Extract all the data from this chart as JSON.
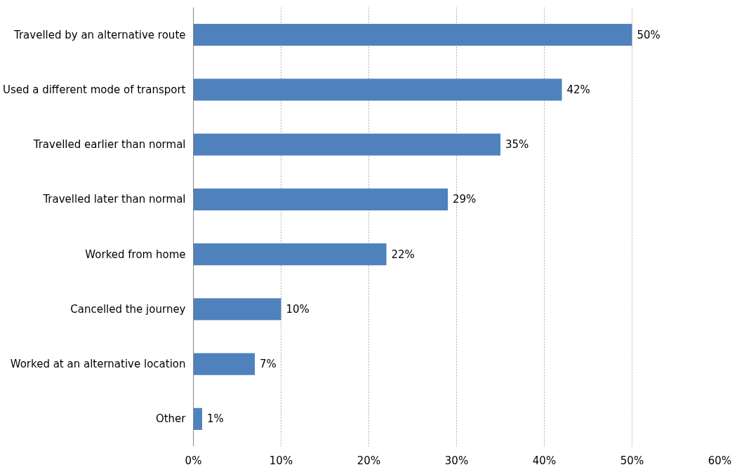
{
  "chart_data": {
    "type": "bar",
    "orientation": "horizontal",
    "categories": [
      "Travelled by an alternative route",
      "Used a different mode of transport",
      "Travelled earlier than normal",
      "Travelled later than normal",
      "Worked from home",
      "Cancelled the journey",
      "Worked at an alternative location",
      "Other"
    ],
    "values": [
      50,
      42,
      35,
      29,
      22,
      10,
      7,
      1
    ],
    "value_labels": [
      "50%",
      "42%",
      "35%",
      "29%",
      "22%",
      "10%",
      "7%",
      "1%"
    ],
    "color": "#4f81bd",
    "xlim": [
      0,
      60
    ],
    "xticks": [
      {
        "value": 0,
        "label": "0%"
      },
      {
        "value": 10,
        "label": "10%"
      },
      {
        "value": 20,
        "label": "20%"
      },
      {
        "value": 30,
        "label": "30%"
      },
      {
        "value": 40,
        "label": "40%"
      },
      {
        "value": 50,
        "label": "50%"
      },
      {
        "value": 60,
        "label": "60%"
      }
    ],
    "grid": "x"
  }
}
